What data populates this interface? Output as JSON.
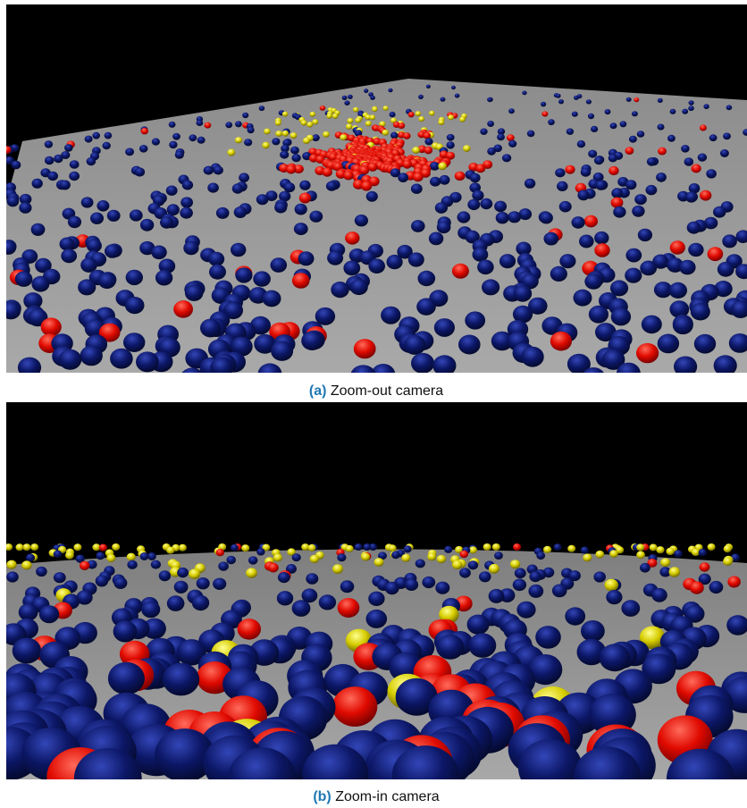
{
  "panels": [
    {
      "label": "(a)",
      "caption": "Zoom-out camera"
    },
    {
      "label": "(b)",
      "caption": "Zoom-in camera"
    }
  ]
}
